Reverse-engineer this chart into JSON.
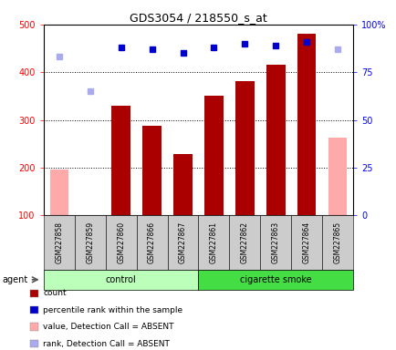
{
  "title": "GDS3054 / 218550_s_at",
  "samples": [
    "GSM227858",
    "GSM227859",
    "GSM227860",
    "GSM227866",
    "GSM227867",
    "GSM227861",
    "GSM227862",
    "GSM227863",
    "GSM227864",
    "GSM227865"
  ],
  "count_values": [
    null,
    null,
    330,
    287,
    228,
    350,
    382,
    415,
    480,
    null
  ],
  "count_absent_values": [
    195,
    100,
    null,
    null,
    null,
    null,
    null,
    null,
    null,
    262
  ],
  "rank_values": [
    null,
    null,
    88,
    87,
    85,
    88,
    90,
    89,
    91,
    null
  ],
  "rank_absent_values": [
    83,
    65,
    null,
    null,
    null,
    null,
    null,
    null,
    null,
    87
  ],
  "bar_color_present": "#aa0000",
  "bar_color_absent": "#ffaaaa",
  "marker_color_present": "#0000cc",
  "marker_color_absent": "#aaaaee",
  "control_color": "#bbffbb",
  "smoke_color": "#44dd44",
  "legend_items": [
    {
      "color": "#aa0000",
      "label": "count"
    },
    {
      "color": "#0000cc",
      "label": "percentile rank within the sample"
    },
    {
      "color": "#ffaaaa",
      "label": "value, Detection Call = ABSENT"
    },
    {
      "color": "#aaaaee",
      "label": "rank, Detection Call = ABSENT"
    }
  ],
  "control_count": 5,
  "smoke_count": 5
}
